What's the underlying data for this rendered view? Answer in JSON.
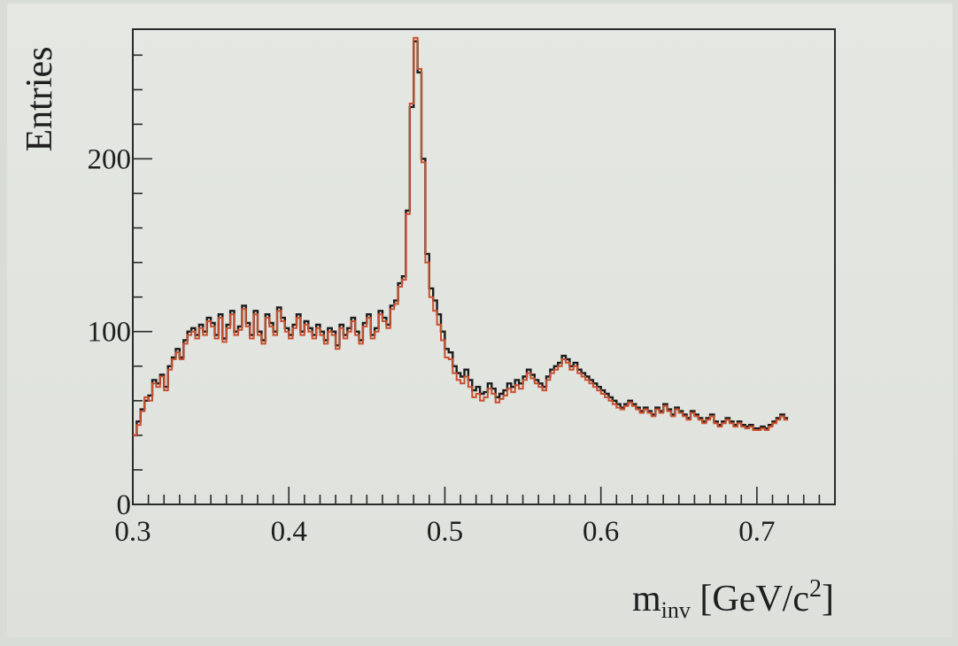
{
  "chart_data": {
    "type": "line",
    "xlabel": {
      "base": "m",
      "sub": "inv",
      "unit_open": " [GeV/c",
      "sup": "2",
      "unit_close": "]"
    },
    "ylabel": "Entries",
    "xlim": [
      0.3,
      0.75
    ],
    "ylim": [
      0,
      275
    ],
    "xticks": [
      "0.3",
      "0.4",
      "0.5",
      "0.6",
      "0.7"
    ],
    "yticks": [
      "0",
      "100",
      "200"
    ],
    "grid": false,
    "legend": "none",
    "colors": {
      "black_series": "#1c1c1c",
      "red_series": "#c8502f",
      "frame": "#2a2a2a"
    },
    "bin_start": 0.3,
    "bin_width": 0.0025,
    "series": [
      {
        "values": [
          40,
          48,
          55,
          60,
          63,
          72,
          70,
          75,
          68,
          80,
          85,
          90,
          85,
          95,
          100,
          102,
          98,
          104,
          100,
          108,
          105,
          98,
          110,
          96,
          104,
          112,
          100,
          103,
          115,
          105,
          98,
          112,
          100,
          95,
          110,
          105,
          100,
          114,
          108,
          102,
          98,
          104,
          110,
          100,
          106,
          102,
          98,
          104,
          100,
          95,
          102,
          100,
          92,
          104,
          98,
          102,
          108,
          100,
          95,
          105,
          110,
          98,
          102,
          112,
          108,
          104,
          115,
          118,
          128,
          132,
          170,
          230,
          268,
          250,
          200,
          145,
          125,
          118,
          110,
          100,
          90,
          88,
          80,
          76,
          74,
          78,
          72,
          66,
          68,
          64,
          65,
          70,
          67,
          62,
          64,
          66,
          70,
          68,
          72,
          70,
          74,
          78,
          75,
          72,
          70,
          68,
          74,
          78,
          80,
          82,
          86,
          84,
          80,
          82,
          78,
          76,
          74,
          72,
          70,
          68,
          66,
          64,
          62,
          60,
          58,
          56,
          58,
          60,
          58,
          56,
          54,
          56,
          54,
          52,
          56,
          54,
          58,
          55,
          52,
          56,
          54,
          52,
          50,
          54,
          52,
          50,
          48,
          50,
          52,
          48,
          46,
          48,
          50,
          48,
          46,
          48,
          46,
          45,
          46,
          44,
          44,
          45,
          44,
          46,
          48,
          50,
          52,
          50
        ]
      },
      {
        "values": [
          40,
          46,
          54,
          62,
          60,
          70,
          68,
          74,
          66,
          78,
          84,
          88,
          84,
          93,
          98,
          100,
          96,
          102,
          98,
          106,
          103,
          96,
          108,
          94,
          102,
          110,
          98,
          101,
          113,
          103,
          96,
          110,
          98,
          93,
          108,
          103,
          98,
          112,
          106,
          100,
          96,
          102,
          108,
          98,
          104,
          100,
          96,
          102,
          98,
          93,
          100,
          98,
          90,
          102,
          96,
          100,
          106,
          98,
          93,
          103,
          108,
          96,
          100,
          110,
          106,
          102,
          113,
          116,
          126,
          130,
          168,
          232,
          270,
          252,
          198,
          140,
          120,
          112,
          104,
          95,
          85,
          84,
          76,
          72,
          70,
          74,
          68,
          62,
          64,
          60,
          62,
          67,
          64,
          59,
          61,
          63,
          67,
          65,
          69,
          67,
          72,
          76,
          73,
          70,
          68,
          66,
          72,
          76,
          78,
          80,
          84,
          82,
          78,
          80,
          76,
          74,
          72,
          70,
          68,
          66,
          64,
          62,
          60,
          58,
          56,
          55,
          57,
          59,
          57,
          55,
          53,
          55,
          53,
          51,
          55,
          53,
          57,
          54,
          51,
          55,
          53,
          51,
          49,
          53,
          51,
          49,
          47,
          49,
          51,
          47,
          45,
          47,
          49,
          47,
          45,
          47,
          45,
          44,
          45,
          43,
          43,
          44,
          43,
          45,
          47,
          49,
          51,
          49
        ]
      }
    ]
  }
}
